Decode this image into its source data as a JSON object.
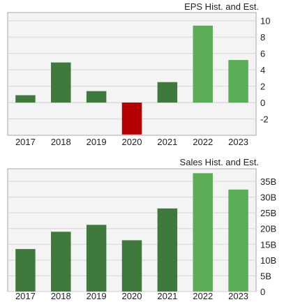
{
  "chart_data": [
    {
      "type": "bar",
      "title": "EPS Hist. and Est.",
      "categories": [
        "2017",
        "2018",
        "2019",
        "2020",
        "2021",
        "2022",
        "2023"
      ],
      "values": [
        0.9,
        4.9,
        1.4,
        -3.9,
        2.5,
        9.4,
        5.2
      ],
      "estimate_flags": [
        false,
        false,
        false,
        false,
        false,
        true,
        true
      ],
      "ylim": [
        -4,
        11
      ],
      "yticks": [
        -2,
        0,
        2,
        4,
        6,
        8,
        10
      ],
      "ytick_labels": [
        "-2",
        "0",
        "2",
        "4",
        "6",
        "8",
        "10"
      ],
      "grid": true
    },
    {
      "type": "bar",
      "title": "Sales Hist. and Est.",
      "categories": [
        "2017",
        "2018",
        "2019",
        "2020",
        "2021",
        "2022",
        "2023"
      ],
      "values": [
        13.5,
        19.0,
        21.2,
        16.3,
        26.4,
        37.6,
        32.4
      ],
      "estimate_flags": [
        false,
        false,
        false,
        false,
        false,
        true,
        true
      ],
      "ylim": [
        0,
        39
      ],
      "yticks": [
        0,
        5,
        10,
        15,
        20,
        25,
        30,
        35
      ],
      "ytick_labels": [
        "0",
        "5B",
        "10B",
        "15B",
        "20B",
        "25B",
        "30B",
        "35B"
      ],
      "grid": true
    }
  ],
  "colors": {
    "positive": "#3f7a3c",
    "estimate": "#5aad55",
    "negative": "#b30000"
  }
}
